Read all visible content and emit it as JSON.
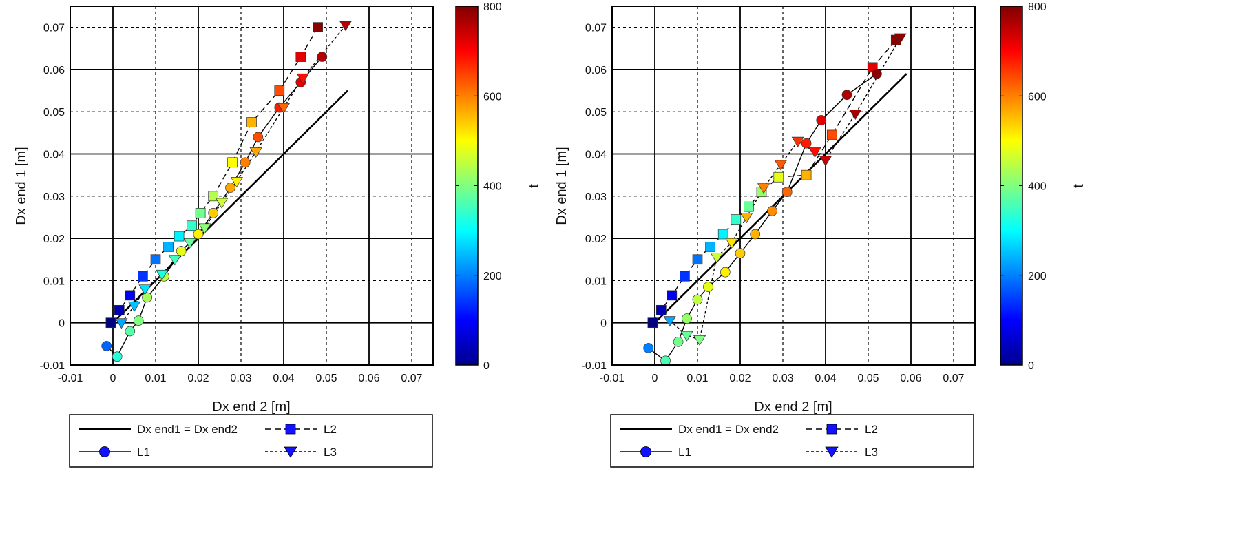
{
  "chart_data": [
    {
      "type": "scatter",
      "title": "",
      "xlabel": "Dx end 2 [m]",
      "ylabel": "Dx end 1 [m]",
      "xlim": [
        -0.01,
        0.075
      ],
      "ylim": [
        -0.01,
        0.075
      ],
      "xticks": [
        -0.01,
        0,
        0.01,
        0.02,
        0.03,
        0.04,
        0.05,
        0.06,
        0.07
      ],
      "yticks": [
        -0.01,
        0,
        0.01,
        0.02,
        0.03,
        0.04,
        0.05,
        0.06,
        0.07
      ],
      "xtick_labels": [
        "-0.01",
        "0",
        "0.01",
        "0.02",
        "0.03",
        "0.04",
        "0.05",
        "0.06",
        "0.07"
      ],
      "ytick_labels": [
        "-0.01",
        "0",
        "0.01",
        "0.02",
        "0.03",
        "0.04",
        "0.05",
        "0.06",
        "0.07"
      ],
      "grid": "solid lines at even ticks, dashed lines at odd ticks",
      "colorbar": {
        "label": "t",
        "range": [
          0,
          800
        ],
        "ticks": [
          0,
          200,
          400,
          600,
          800
        ],
        "tick_labels": [
          "0",
          "200",
          "400",
          "600",
          "800"
        ],
        "colormap": "jet"
      },
      "reference_line": {
        "name": "Dx end1 = Dx end2",
        "x": [
          0.0,
          0.055
        ],
        "y": [
          0.0,
          0.055
        ]
      },
      "legend": [
        {
          "label": "Dx end1 = Dx end2",
          "style": "solid",
          "marker": "none"
        },
        {
          "label": "L2",
          "style": "dashed",
          "marker": "square"
        },
        {
          "label": "L1",
          "style": "solid",
          "marker": "circle"
        },
        {
          "label": "L3",
          "style": "dotted",
          "marker": "triangle-down"
        }
      ],
      "series": [
        {
          "name": "L2",
          "marker": "square",
          "style": "dashed",
          "x": [
            -0.0005,
            0.0015,
            0.004,
            0.007,
            0.01,
            0.013,
            0.0155,
            0.0185,
            0.0205,
            0.0235,
            0.028,
            0.0325,
            0.039,
            0.044,
            0.048
          ],
          "y": [
            0.0,
            0.003,
            0.0065,
            0.011,
            0.015,
            0.018,
            0.0205,
            0.023,
            0.026,
            0.03,
            0.038,
            0.0475,
            0.055,
            0.063,
            0.07
          ],
          "t": [
            0,
            40,
            90,
            140,
            190,
            240,
            290,
            340,
            390,
            440,
            500,
            560,
            640,
            720,
            790
          ]
        },
        {
          "name": "L1",
          "marker": "circle",
          "style": "solid",
          "x": [
            -0.0015,
            0.001,
            0.004,
            0.006,
            0.008,
            0.012,
            0.016,
            0.02,
            0.0235,
            0.0275,
            0.031,
            0.034,
            0.039,
            0.044,
            0.049
          ],
          "y": [
            -0.0055,
            -0.008,
            -0.002,
            0.0005,
            0.006,
            0.011,
            0.017,
            0.021,
            0.026,
            0.032,
            0.038,
            0.044,
            0.051,
            0.057,
            0.063
          ],
          "t": [
            180,
            330,
            370,
            400,
            430,
            450,
            480,
            510,
            540,
            570,
            600,
            640,
            680,
            720,
            760
          ]
        },
        {
          "name": "L3",
          "marker": "triangle-down",
          "style": "dotted",
          "x": [
            0.002,
            0.005,
            0.0075,
            0.0115,
            0.0145,
            0.018,
            0.0215,
            0.0255,
            0.029,
            0.0335,
            0.04,
            0.0445,
            0.0545
          ],
          "y": [
            0.0,
            0.004,
            0.008,
            0.0115,
            0.015,
            0.019,
            0.0225,
            0.0285,
            0.0335,
            0.0405,
            0.051,
            0.058,
            0.0705
          ],
          "t": [
            230,
            250,
            280,
            320,
            350,
            380,
            410,
            460,
            510,
            570,
            620,
            690,
            760
          ]
        }
      ]
    },
    {
      "type": "scatter",
      "title": "",
      "xlabel": "Dx end 2 [m]",
      "ylabel": "Dx end 1 [m]",
      "xlim": [
        -0.01,
        0.075
      ],
      "ylim": [
        -0.01,
        0.075
      ],
      "xticks": [
        -0.01,
        0,
        0.01,
        0.02,
        0.03,
        0.04,
        0.05,
        0.06,
        0.07
      ],
      "yticks": [
        -0.01,
        0,
        0.01,
        0.02,
        0.03,
        0.04,
        0.05,
        0.06,
        0.07
      ],
      "xtick_labels": [
        "-0.01",
        "0",
        "0.01",
        "0.02",
        "0.03",
        "0.04",
        "0.05",
        "0.06",
        "0.07"
      ],
      "ytick_labels": [
        "-0.01",
        "0",
        "0.01",
        "0.02",
        "0.03",
        "0.04",
        "0.05",
        "0.06",
        "0.07"
      ],
      "grid": "solid lines at even ticks, dashed lines at odd ticks",
      "colorbar": {
        "label": "t",
        "range": [
          0,
          800
        ],
        "ticks": [
          0,
          200,
          400,
          600,
          800
        ],
        "tick_labels": [
          "0",
          "200",
          "400",
          "600",
          "800"
        ],
        "colormap": "jet"
      },
      "reference_line": {
        "name": "Dx end1 = Dx end2",
        "x": [
          0.0,
          0.059
        ],
        "y": [
          0.0,
          0.059
        ]
      },
      "legend": [
        {
          "label": "Dx end1 = Dx end2",
          "style": "solid",
          "marker": "none"
        },
        {
          "label": "L2",
          "style": "dashed",
          "marker": "square"
        },
        {
          "label": "L1",
          "style": "solid",
          "marker": "circle"
        },
        {
          "label": "L3",
          "style": "dotted",
          "marker": "triangle-down"
        }
      ],
      "series": [
        {
          "name": "L2",
          "marker": "square",
          "style": "dashed",
          "x": [
            -0.0005,
            0.0015,
            0.004,
            0.007,
            0.01,
            0.013,
            0.016,
            0.019,
            0.022,
            0.025,
            0.029,
            0.0355,
            0.0415,
            0.051,
            0.0565
          ],
          "y": [
            0.0,
            0.003,
            0.0065,
            0.011,
            0.015,
            0.018,
            0.021,
            0.0245,
            0.0275,
            0.031,
            0.0345,
            0.035,
            0.0445,
            0.0605,
            0.067
          ],
          "t": [
            0,
            40,
            90,
            140,
            190,
            240,
            290,
            340,
            380,
            420,
            480,
            560,
            640,
            720,
            790
          ]
        },
        {
          "name": "L1",
          "marker": "circle",
          "style": "solid",
          "x": [
            -0.0015,
            0.0025,
            0.0055,
            0.0075,
            0.01,
            0.0125,
            0.0165,
            0.02,
            0.0235,
            0.0275,
            0.031,
            0.0355,
            0.039,
            0.045,
            0.052
          ],
          "y": [
            -0.006,
            -0.009,
            -0.0045,
            0.001,
            0.0055,
            0.0085,
            0.012,
            0.0165,
            0.021,
            0.0265,
            0.031,
            0.0425,
            0.048,
            0.054,
            0.059
          ],
          "t": [
            200,
            360,
            390,
            420,
            450,
            480,
            510,
            540,
            560,
            590,
            620,
            680,
            720,
            760,
            790
          ]
        },
        {
          "name": "L3",
          "marker": "triangle-down",
          "style": "dotted",
          "x": [
            0.0035,
            0.0075,
            0.0105,
            0.0145,
            0.018,
            0.0215,
            0.0255,
            0.0295,
            0.0335,
            0.0375,
            0.04,
            0.047,
            0.0575
          ],
          "y": [
            0.0005,
            -0.003,
            -0.004,
            0.0155,
            0.019,
            0.025,
            0.032,
            0.0375,
            0.043,
            0.0405,
            0.0385,
            0.0495,
            0.0675
          ],
          "t": [
            230,
            380,
            400,
            460,
            520,
            560,
            600,
            630,
            660,
            690,
            740,
            770,
            790
          ]
        }
      ]
    }
  ]
}
